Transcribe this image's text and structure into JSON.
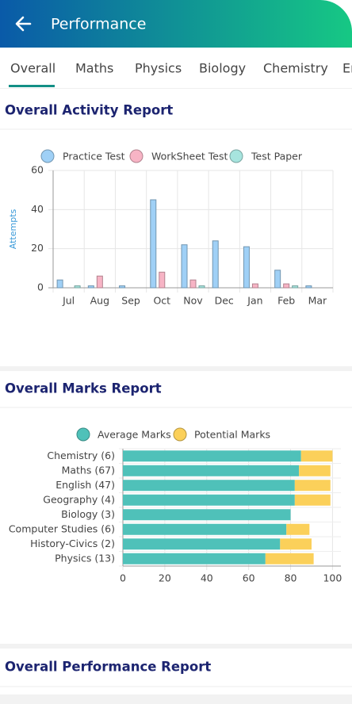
{
  "header": {
    "title": "Performance"
  },
  "tabs": {
    "items": [
      "Overall",
      "Maths",
      "Physics",
      "Biology",
      "Chemistry",
      "English"
    ],
    "active": 0
  },
  "sections": [
    "Overall Activity Report",
    "Overall Marks Report",
    "Overall Performance Report"
  ],
  "chart_data": [
    {
      "type": "bar",
      "categories": [
        "Jul",
        "Aug",
        "Sep",
        "Oct",
        "Nov",
        "Dec",
        "Jan",
        "Feb",
        "Mar"
      ],
      "series": [
        {
          "name": "Practice Test",
          "color": "#9fd0f6",
          "values": [
            4,
            1,
            1,
            45,
            22,
            24,
            21,
            9,
            1
          ]
        },
        {
          "name": "WorkSheet Test",
          "color": "#f7b4c5",
          "values": [
            0,
            6,
            0,
            8,
            4,
            0,
            2,
            2,
            0
          ]
        },
        {
          "name": "Test Paper",
          "color": "#a7e4de",
          "values": [
            1,
            0,
            0,
            0,
            1,
            0,
            0,
            1,
            0
          ]
        }
      ],
      "y_label": "Attempts",
      "ylim": [
        0,
        60
      ],
      "yticks": [
        0,
        20,
        40,
        60
      ],
      "grid": true,
      "legend": "top"
    },
    {
      "type": "hbar_stacked",
      "categories": [
        "Chemistry (6)",
        "Maths (67)",
        "English (47)",
        "Geography (4)",
        "Biology (3)",
        "Computer Studies (6)",
        "History-Civics (2)",
        "Physics (13)"
      ],
      "series": [
        {
          "name": "Average Marks",
          "color": "#4fc1b9",
          "values": [
            85,
            84,
            82,
            82,
            80,
            78,
            75,
            68
          ]
        },
        {
          "name": "Potential Marks",
          "color": "#fbd05a",
          "values": [
            15,
            15,
            17,
            17,
            0,
            11,
            15,
            23
          ]
        }
      ],
      "xlim": [
        0,
        104
      ],
      "xticks": [
        0,
        20,
        40,
        60,
        80,
        100
      ],
      "grid": true,
      "legend": "top"
    }
  ]
}
